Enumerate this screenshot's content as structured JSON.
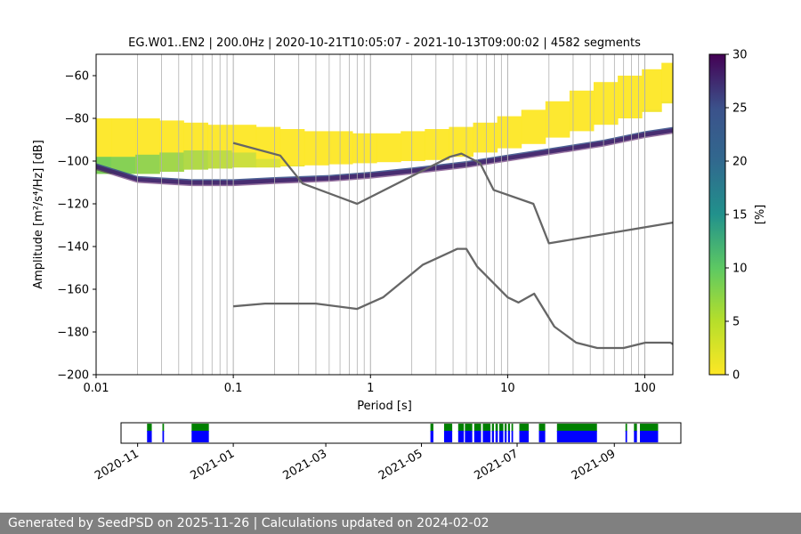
{
  "chart_data": {
    "type": "heatmap",
    "title": "EG.W01..EN2 | 200.0Hz | 2020-10-21T10:05:07 - 2021-10-13T09:00:02 | 4582 segments",
    "xlabel": "Period [s]",
    "ylabel": "Amplitude [m²/s⁴/Hz] [dB]",
    "xscale": "log",
    "xlim": [
      0.01,
      160
    ],
    "ylim": [
      -200,
      -50
    ],
    "xticks": [
      0.01,
      0.1,
      1,
      10,
      100
    ],
    "xtick_labels": [
      "0.01",
      "0.1",
      "1",
      "10",
      "100"
    ],
    "yticks": [
      -60,
      -80,
      -100,
      -120,
      -140,
      -160,
      -180,
      -200
    ],
    "ytick_labels": [
      "−60",
      "−80",
      "−100",
      "−120",
      "−140",
      "−160",
      "−180",
      "−200"
    ],
    "colorbar": {
      "label": "[%]",
      "range": [
        0,
        30
      ],
      "ticks": [
        0,
        5,
        10,
        15,
        20,
        25,
        30
      ],
      "tick_labels": [
        "0",
        "5",
        "10",
        "15",
        "20",
        "25",
        "30"
      ],
      "colormap": [
        "#fde725",
        "#5ec962",
        "#21918c",
        "#3b528b",
        "#440154"
      ]
    },
    "series": [
      {
        "name": "high-noise-model",
        "color": "#666666",
        "x": [
          0.1,
          0.22,
          0.32,
          0.8,
          3.8,
          4.6,
          6.3,
          7.9,
          15.4,
          20,
          160
        ],
        "y": [
          -91.5,
          -97.4,
          -110.5,
          -120,
          -98,
          -96.5,
          -101,
          -113.5,
          -120,
          -138.5,
          -128.8
        ]
      },
      {
        "name": "low-noise-model",
        "color": "#666666",
        "x": [
          0.1,
          0.17,
          0.4,
          0.8,
          1.24,
          2.4,
          4.3,
          5,
          6,
          10,
          12,
          15.6,
          21.9,
          31.6,
          45,
          70,
          101,
          154,
          160
        ],
        "y": [
          -168,
          -166.7,
          -166.7,
          -169.2,
          -163.7,
          -148.6,
          -141.1,
          -141.1,
          -149.4,
          -163.8,
          -166.2,
          -162.1,
          -177.5,
          -185,
          -187.5,
          -187.5,
          -185,
          -185,
          -185.7
        ]
      }
    ],
    "density_ridge": {
      "name": "dominant-psd-band",
      "x": [
        0.01,
        0.02,
        0.05,
        0.1,
        0.2,
        0.5,
        1,
        2,
        5,
        10,
        20,
        50,
        100,
        160
      ],
      "y": [
        -102,
        -108,
        -109.5,
        -109.5,
        -108.5,
        -107.5,
        -106,
        -104,
        -101,
        -98,
        -95,
        -91,
        -87,
        -85
      ]
    },
    "bins_x": [
      0.0105,
      0.0158,
      0.0237,
      0.0355,
      0.0532,
      0.0798,
      0.1196,
      0.1793,
      0.2687,
      0.4028,
      0.6038,
      0.905,
      1.357,
      2.034,
      3.048,
      4.569,
      6.849,
      10.27,
      15.39,
      23.07,
      34.57,
      51.83,
      77.69,
      116.5,
      150
    ],
    "bins_p10": [
      -106,
      -106,
      -106,
      -105,
      -104,
      -103.5,
      -103,
      -103,
      -102.5,
      -102,
      -101.5,
      -101,
      -100.5,
      -100,
      -99.5,
      -98,
      -96,
      -94,
      -92,
      -89,
      -86,
      -83,
      -80,
      -77,
      -73
    ],
    "bins_p50": [
      -96,
      -96,
      -95,
      -94,
      -93,
      -93,
      -94,
      -97,
      -100,
      -102,
      -103,
      -103,
      -102,
      -101,
      -100,
      -99,
      -98,
      -96,
      -93,
      -89,
      -85,
      -82,
      -78,
      -74,
      -70
    ],
    "bins_p90": [
      -80,
      -80,
      -80,
      -81,
      -82,
      -83,
      -83,
      -84,
      -85,
      -86,
      -86,
      -87,
      -87,
      -86,
      -85,
      -84,
      -82,
      -79,
      -76,
      -72,
      -67,
      -63,
      -60,
      -57,
      -54
    ],
    "timeline": {
      "tick_labels": [
        "2020-11",
        "2021-01",
        "2021-03",
        "2021-05",
        "2021-07",
        "2021-09"
      ],
      "ticks_days": [
        10.58,
        71.58,
        130.58,
        191.58,
        252.58,
        314.58
      ],
      "range_days": [
        0,
        357
      ],
      "green_segments": [
        [
          16.6,
          19.6
        ],
        [
          26.4,
          27.4
        ],
        [
          45,
          56
        ],
        [
          197.3,
          199.2
        ],
        [
          206,
          211.2
        ],
        [
          215,
          218.6
        ],
        [
          219.3,
          224
        ],
        [
          225.2,
          229.6
        ],
        [
          230.7,
          235.6
        ],
        [
          236.5,
          237.8
        ],
        [
          238.8,
          240.3
        ],
        [
          241.2,
          243.8
        ],
        [
          244.6,
          245.9
        ],
        [
          246.8,
          248
        ],
        [
          249,
          250
        ],
        [
          254,
          260
        ],
        [
          266.5,
          270.5
        ],
        [
          278,
          303.5
        ],
        [
          321.7,
          322.7
        ],
        [
          327.1,
          329
        ],
        [
          330.9,
          342.5
        ]
      ],
      "blue_segments": [
        [
          16.6,
          19.6
        ],
        [
          26.4,
          27.4
        ],
        [
          45,
          56
        ],
        [
          197.3,
          199.2
        ],
        [
          206,
          211.2
        ],
        [
          215,
          218.6
        ],
        [
          219.3,
          224
        ],
        [
          225.2,
          229.6
        ],
        [
          230.7,
          235.6
        ],
        [
          236.5,
          237.8
        ],
        [
          238.8,
          240.3
        ],
        [
          241.2,
          243.8
        ],
        [
          244.6,
          245.9
        ],
        [
          246.8,
          248
        ],
        [
          249,
          250
        ],
        [
          254,
          260
        ],
        [
          266.5,
          270.5
        ],
        [
          278,
          303.5
        ],
        [
          321.7,
          322.7
        ],
        [
          327.1,
          329
        ],
        [
          330.9,
          342.5
        ]
      ],
      "green_color": "#008000",
      "blue_color": "#0000ff"
    }
  },
  "footer": {
    "text": "Generated by SeedPSD on 2025-11-26 | Calculations updated on 2024-02-02"
  }
}
